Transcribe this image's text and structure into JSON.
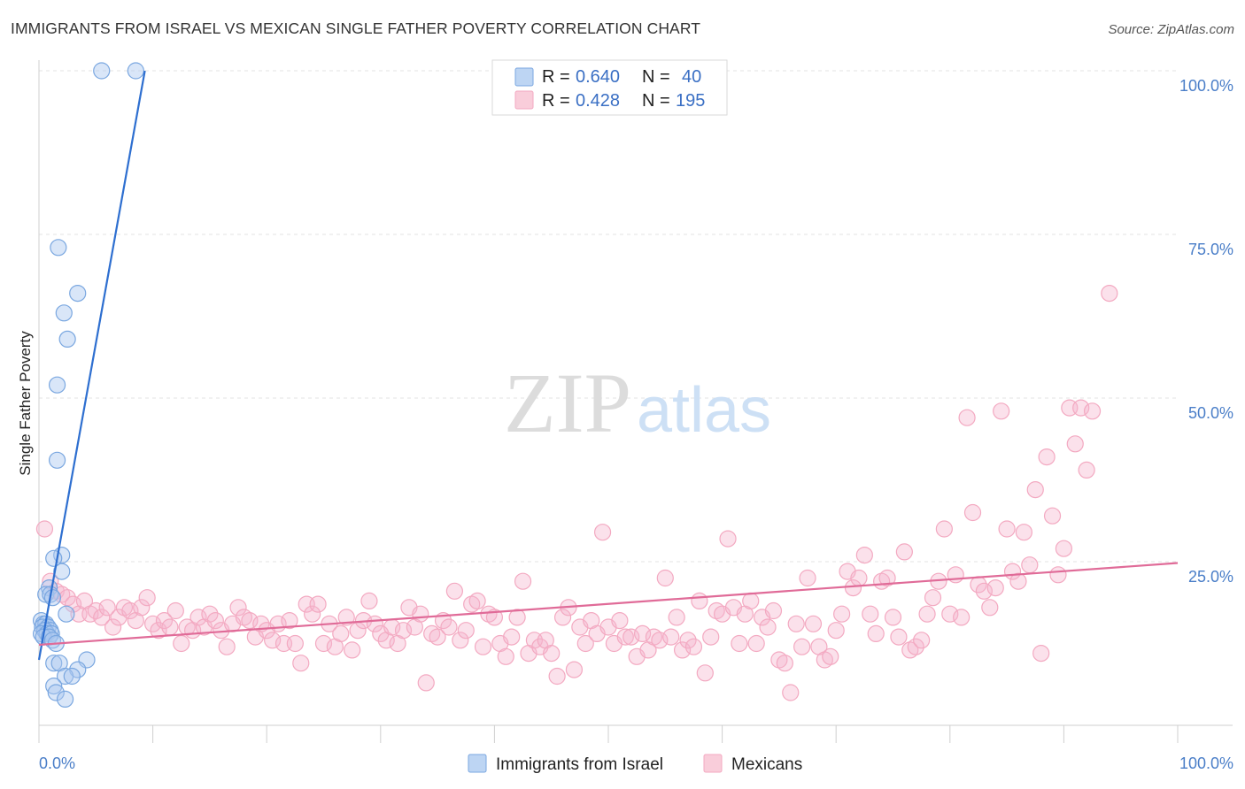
{
  "title": "IMMIGRANTS FROM ISRAEL VS MEXICAN SINGLE FATHER POVERTY CORRELATION CHART",
  "source": "Source: ZipAtlas.com",
  "chart_data": {
    "type": "scatter",
    "ylabel": "Single Father Poverty",
    "xlim": [
      0,
      100
    ],
    "ylim": [
      0,
      100
    ],
    "x_tick_labels": [
      "0.0%",
      "100.0%"
    ],
    "y_ticks": [
      {
        "value": 100,
        "label": "100.0%"
      },
      {
        "value": 75,
        "label": "75.0%"
      },
      {
        "value": 50,
        "label": "50.0%"
      },
      {
        "value": 25,
        "label": "25.0%"
      }
    ],
    "grid": true,
    "legend_position": "top-center",
    "watermark": "ZIPatlas",
    "series": [
      {
        "name": "Immigrants from Israel",
        "color": "#7aa7e0",
        "line_color": "#2e6fd0",
        "R_label": "R =",
        "R": "0.640",
        "N_label": "N =",
        "N": "40",
        "trend": [
          [
            0.0,
            10.0
          ],
          [
            9.3,
            100.0
          ]
        ],
        "points": [
          [
            5.5,
            100
          ],
          [
            8.5,
            100
          ],
          [
            1.7,
            73
          ],
          [
            3.4,
            66
          ],
          [
            2.2,
            63
          ],
          [
            2.5,
            59
          ],
          [
            1.6,
            52
          ],
          [
            1.6,
            40.5
          ],
          [
            2.0,
            26
          ],
          [
            1.3,
            25.5
          ],
          [
            2.0,
            23.5
          ],
          [
            0.9,
            21
          ],
          [
            0.6,
            20
          ],
          [
            1.0,
            20
          ],
          [
            1.2,
            19.5
          ],
          [
            2.4,
            17
          ],
          [
            0.2,
            16
          ],
          [
            0.4,
            15.5
          ],
          [
            0.6,
            15.5
          ],
          [
            0.3,
            15
          ],
          [
            0.8,
            15
          ],
          [
            1.0,
            14.5
          ],
          [
            0.5,
            14.5
          ],
          [
            0.2,
            14
          ],
          [
            0.7,
            14
          ],
          [
            1.1,
            14
          ],
          [
            0.4,
            13.5
          ],
          [
            0.9,
            13.5
          ],
          [
            1.2,
            13
          ],
          [
            1.5,
            12.5
          ],
          [
            4.2,
            10
          ],
          [
            1.3,
            9.5
          ],
          [
            1.8,
            9.5
          ],
          [
            3.4,
            8.5
          ],
          [
            2.3,
            7.5
          ],
          [
            2.9,
            7.5
          ],
          [
            1.3,
            6
          ],
          [
            1.5,
            5
          ],
          [
            2.3,
            4
          ]
        ]
      },
      {
        "name": "Mexicans",
        "color": "#f3a9c1",
        "line_color": "#e06b98",
        "R_label": "R =",
        "R": "0.428",
        "N_label": "N =",
        "N": "195",
        "trend": [
          [
            0.0,
            12.3
          ],
          [
            100.0,
            24.8
          ]
        ],
        "points": [
          [
            0.5,
            30
          ],
          [
            1.0,
            22
          ],
          [
            1.5,
            20.5
          ],
          [
            2.0,
            20
          ],
          [
            2.5,
            19.5
          ],
          [
            3.0,
            18.5
          ],
          [
            3.5,
            17
          ],
          [
            4.0,
            19
          ],
          [
            4.5,
            17
          ],
          [
            5.0,
            17.5
          ],
          [
            5.5,
            16.5
          ],
          [
            6.0,
            18
          ],
          [
            6.5,
            15
          ],
          [
            7.0,
            16.5
          ],
          [
            7.5,
            18
          ],
          [
            8.0,
            17.5
          ],
          [
            8.5,
            16
          ],
          [
            9.0,
            18
          ],
          [
            9.5,
            19.5
          ],
          [
            10.0,
            15.5
          ],
          [
            10.5,
            14.5
          ],
          [
            11.0,
            16
          ],
          [
            11.5,
            15
          ],
          [
            12.0,
            17.5
          ],
          [
            12.5,
            12.5
          ],
          [
            13.0,
            15
          ],
          [
            13.5,
            14.5
          ],
          [
            14.0,
            16.5
          ],
          [
            14.5,
            15
          ],
          [
            15.0,
            17
          ],
          [
            15.5,
            16
          ],
          [
            16.0,
            14.5
          ],
          [
            16.5,
            12
          ],
          [
            17.0,
            15.5
          ],
          [
            17.5,
            18
          ],
          [
            18.0,
            16.5
          ],
          [
            18.5,
            16
          ],
          [
            19.0,
            13.5
          ],
          [
            19.5,
            15.5
          ],
          [
            20.0,
            14.5
          ],
          [
            20.5,
            13
          ],
          [
            21.0,
            15.5
          ],
          [
            21.5,
            12.5
          ],
          [
            22.0,
            16
          ],
          [
            22.5,
            12.5
          ],
          [
            23.0,
            9.5
          ],
          [
            23.5,
            18.5
          ],
          [
            24.0,
            17
          ],
          [
            24.5,
            18.5
          ],
          [
            25.0,
            12.5
          ],
          [
            25.5,
            15.5
          ],
          [
            26.0,
            12
          ],
          [
            26.5,
            14
          ],
          [
            27.0,
            16.5
          ],
          [
            27.5,
            11.5
          ],
          [
            28.0,
            14.5
          ],
          [
            28.5,
            16
          ],
          [
            29.0,
            19
          ],
          [
            29.5,
            15.5
          ],
          [
            30.0,
            14
          ],
          [
            30.5,
            13
          ],
          [
            31.0,
            15
          ],
          [
            31.5,
            12.5
          ],
          [
            32.0,
            14.5
          ],
          [
            32.5,
            18
          ],
          [
            33.0,
            15
          ],
          [
            33.5,
            17
          ],
          [
            34.0,
            6.5
          ],
          [
            34.5,
            14
          ],
          [
            35.0,
            13.5
          ],
          [
            35.5,
            16
          ],
          [
            36.0,
            15
          ],
          [
            36.5,
            20.5
          ],
          [
            37.0,
            13
          ],
          [
            37.5,
            14.5
          ],
          [
            38.0,
            18.5
          ],
          [
            38.5,
            19
          ],
          [
            39.0,
            12
          ],
          [
            39.5,
            17
          ],
          [
            40.0,
            16.5
          ],
          [
            40.5,
            12.5
          ],
          [
            41.0,
            10.5
          ],
          [
            41.5,
            13.5
          ],
          [
            42.0,
            16.5
          ],
          [
            42.5,
            22
          ],
          [
            43.0,
            11
          ],
          [
            43.5,
            13
          ],
          [
            44.0,
            12
          ],
          [
            44.5,
            13
          ],
          [
            45.0,
            11
          ],
          [
            45.5,
            7.5
          ],
          [
            46.0,
            16.5
          ],
          [
            46.5,
            18
          ],
          [
            47.0,
            8.5
          ],
          [
            47.5,
            15
          ],
          [
            48.0,
            12.5
          ],
          [
            48.5,
            16
          ],
          [
            49.0,
            14
          ],
          [
            49.5,
            29.5
          ],
          [
            50.0,
            15
          ],
          [
            50.5,
            12.5
          ],
          [
            51.0,
            16
          ],
          [
            51.5,
            13.5
          ],
          [
            52.0,
            13.5
          ],
          [
            52.5,
            10.5
          ],
          [
            53.0,
            14
          ],
          [
            53.5,
            11.5
          ],
          [
            54.0,
            13.5
          ],
          [
            54.5,
            13
          ],
          [
            55.0,
            22.5
          ],
          [
            55.5,
            13.5
          ],
          [
            56.0,
            16.5
          ],
          [
            56.5,
            11.5
          ],
          [
            57.0,
            13
          ],
          [
            57.5,
            12
          ],
          [
            58.0,
            19
          ],
          [
            58.5,
            8
          ],
          [
            59.0,
            13.5
          ],
          [
            59.5,
            17.5
          ],
          [
            60.0,
            17
          ],
          [
            60.5,
            28.5
          ],
          [
            61.0,
            18
          ],
          [
            61.5,
            12.5
          ],
          [
            62.0,
            17
          ],
          [
            62.5,
            19
          ],
          [
            63.0,
            12.5
          ],
          [
            63.5,
            16.5
          ],
          [
            64.0,
            15
          ],
          [
            64.5,
            17.5
          ],
          [
            65.0,
            10
          ],
          [
            65.5,
            9.5
          ],
          [
            66.0,
            5
          ],
          [
            66.5,
            15.5
          ],
          [
            67.0,
            12
          ],
          [
            67.5,
            22.5
          ],
          [
            68.0,
            15.5
          ],
          [
            68.5,
            12
          ],
          [
            69.0,
            10
          ],
          [
            69.5,
            10.5
          ],
          [
            70.0,
            14.5
          ],
          [
            70.5,
            17
          ],
          [
            71.0,
            23.5
          ],
          [
            71.5,
            21
          ],
          [
            72.0,
            22.5
          ],
          [
            72.5,
            26
          ],
          [
            73.0,
            17
          ],
          [
            73.5,
            14
          ],
          [
            74.0,
            22
          ],
          [
            74.5,
            22.5
          ],
          [
            75.0,
            16.5
          ],
          [
            75.5,
            13.5
          ],
          [
            76.0,
            26.5
          ],
          [
            76.5,
            11.5
          ],
          [
            77.0,
            12
          ],
          [
            77.5,
            13
          ],
          [
            78.0,
            17
          ],
          [
            78.5,
            19.5
          ],
          [
            79.0,
            22
          ],
          [
            79.5,
            30
          ],
          [
            80.0,
            17
          ],
          [
            80.5,
            23
          ],
          [
            81.0,
            16.5
          ],
          [
            81.5,
            47
          ],
          [
            82.0,
            32.5
          ],
          [
            82.5,
            21.5
          ],
          [
            83.0,
            20.5
          ],
          [
            83.5,
            18
          ],
          [
            84.0,
            21
          ],
          [
            84.5,
            48
          ],
          [
            85.0,
            30
          ],
          [
            85.5,
            23.5
          ],
          [
            86.0,
            22
          ],
          [
            86.5,
            29.5
          ],
          [
            87.0,
            24.5
          ],
          [
            87.5,
            36
          ],
          [
            88.0,
            11
          ],
          [
            88.5,
            41
          ],
          [
            89.0,
            32
          ],
          [
            89.5,
            23
          ],
          [
            90.0,
            27
          ],
          [
            90.5,
            48.5
          ],
          [
            91.0,
            43
          ],
          [
            91.5,
            48.5
          ],
          [
            92.0,
            39
          ],
          [
            92.5,
            48
          ],
          [
            94.0,
            66
          ]
        ]
      }
    ]
  }
}
